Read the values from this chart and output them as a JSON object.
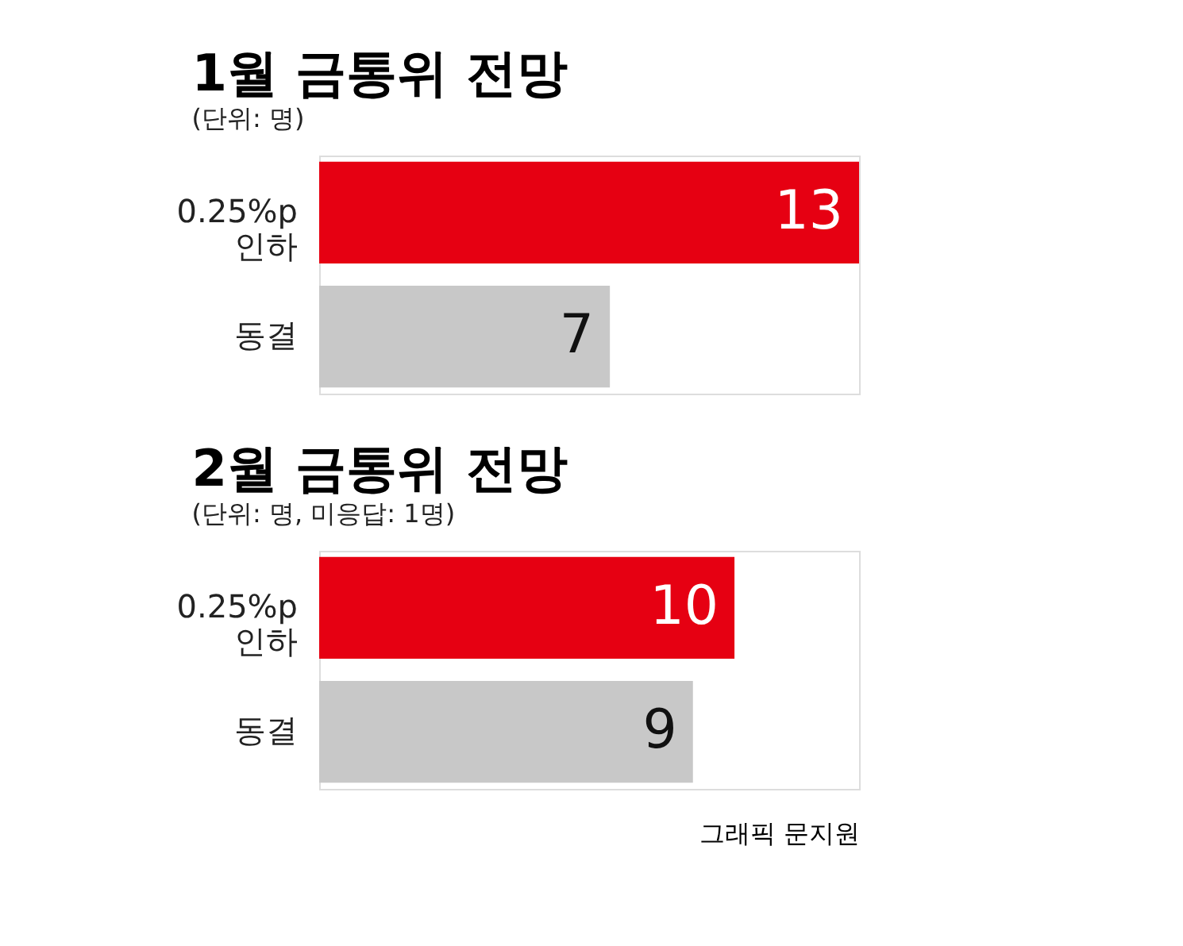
{
  "chart_data": [
    {
      "type": "bar",
      "orientation": "horizontal",
      "title": "1월 금통위 전망",
      "subtitle": "(단위: 명)",
      "categories": [
        "0.25%p 인하",
        "동결"
      ],
      "values": [
        13,
        7
      ],
      "colors": [
        "#e60012",
        "#c8c8c8"
      ],
      "data_labels": true
    },
    {
      "type": "bar",
      "orientation": "horizontal",
      "title": "2월 금통위 전망",
      "subtitle": "(단위: 명, 미응답: 1명)",
      "categories": [
        "0.25%p 인하",
        "동결"
      ],
      "values": [
        10,
        9
      ],
      "colors": [
        "#e60012",
        "#c8c8c8"
      ],
      "data_labels": true,
      "annotations": [
        "그래픽 문지원"
      ]
    }
  ]
}
